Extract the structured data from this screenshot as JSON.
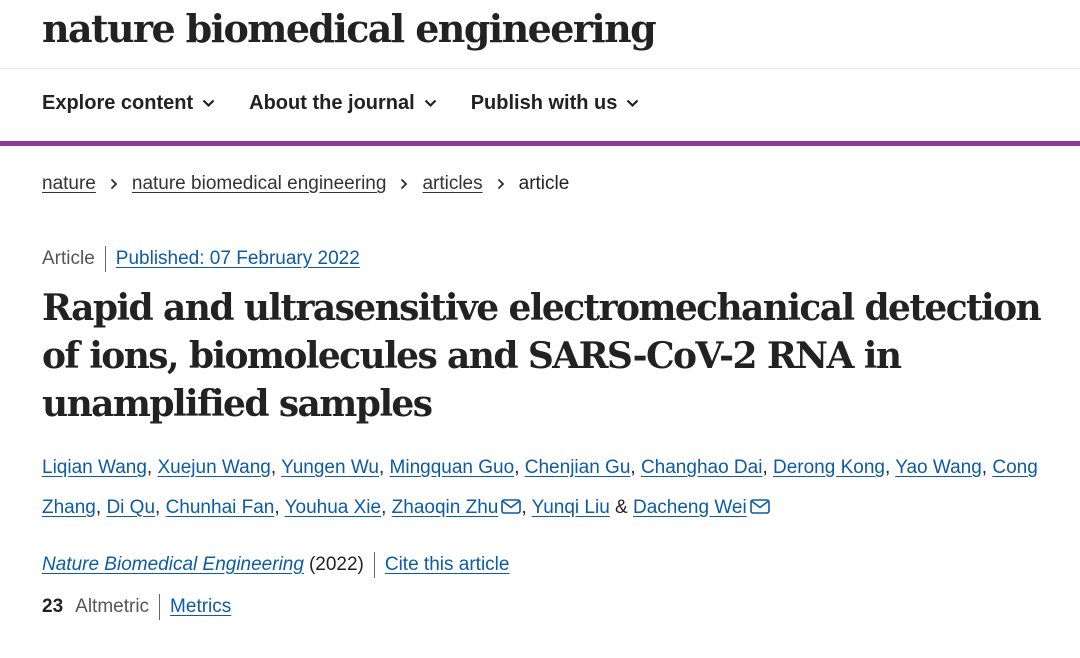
{
  "header": {
    "logo": "nature biomedical engineering"
  },
  "nav": {
    "items": [
      {
        "label": "Explore content"
      },
      {
        "label": "About the journal"
      },
      {
        "label": "Publish with us"
      }
    ]
  },
  "breadcrumb": [
    "nature",
    "nature biomedical engineering",
    "articles",
    "article"
  ],
  "article": {
    "type": "Article",
    "published": "Published: 07 February 2022",
    "title": "Rapid and ultrasensitive electromechanical detection of ions, biomolecules and SARS-CoV-2 RNA in unamplified samples",
    "authors": [
      "Liqian Wang",
      "Xuejun Wang",
      "Yungen Wu",
      "Mingquan Guo",
      "Chenjian Gu",
      "Changhao Dai",
      "Derong Kong",
      "Yao Wang",
      "Cong Zhang",
      "Di Qu",
      "Chunhai Fan",
      "Youhua Xie",
      "Zhaoqin Zhu",
      "Yunqi Liu",
      "Dacheng Wei"
    ],
    "journal": "Nature Biomedical Engineering",
    "year": "(2022)",
    "cite": "Cite this article",
    "altmetric_score": "23",
    "altmetric_label": "Altmetric",
    "metrics": "Metrics"
  },
  "colors": {
    "accent": "#8b3d96",
    "link": "#0c5ba4"
  }
}
